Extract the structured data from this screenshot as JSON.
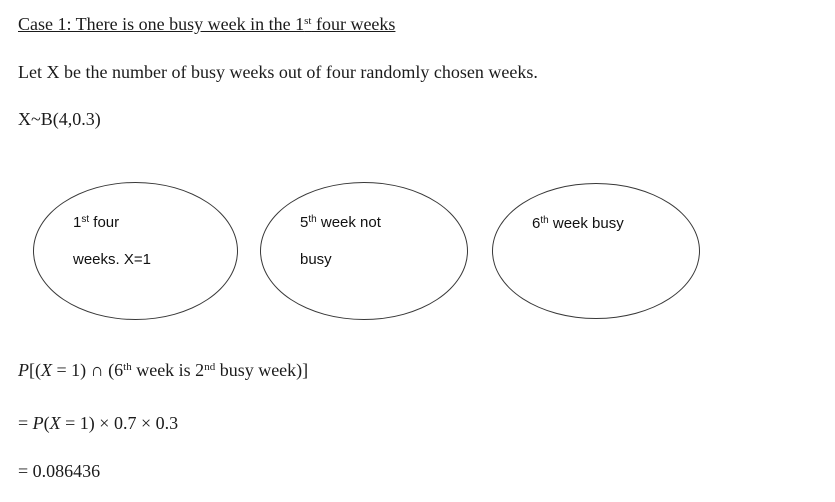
{
  "page": {
    "background_color": "#ffffff",
    "text_color": "#1b1b1b",
    "oval_border_color": "#383838"
  },
  "heading": {
    "text_before_sup": "Case 1: There is one busy week in the 1",
    "sup": "st",
    "text_after_sup": " four weeks"
  },
  "intro": "Let X be the number of busy weeks out of four randomly chosen weeks.",
  "distribution": "X~B(4,0.3)",
  "ovals": [
    {
      "line1_num": "1",
      "line1_sup": "st",
      "line1_rest": " four",
      "line2": "weeks. X=1"
    },
    {
      "line1_num": "5",
      "line1_sup": "th",
      "line1_rest": " week not",
      "line2": "busy"
    },
    {
      "line1_num": "6",
      "line1_sup": "th",
      "line1_rest": " week busy",
      "line2": ""
    }
  ],
  "math": {
    "line1": {
      "p": "P",
      "b1": "[(",
      "x": "X",
      "m1": " = 1) ∩ (6",
      "s1": "th",
      "m2": " week is 2",
      "s2": "nd",
      "m3": " busy week)]"
    },
    "line2": {
      "m0": "= ",
      "p": "P",
      "b1": "(",
      "x": "X",
      "m1": " = 1) × 0.7 × 0.3"
    },
    "line3": "= 0.086436"
  }
}
